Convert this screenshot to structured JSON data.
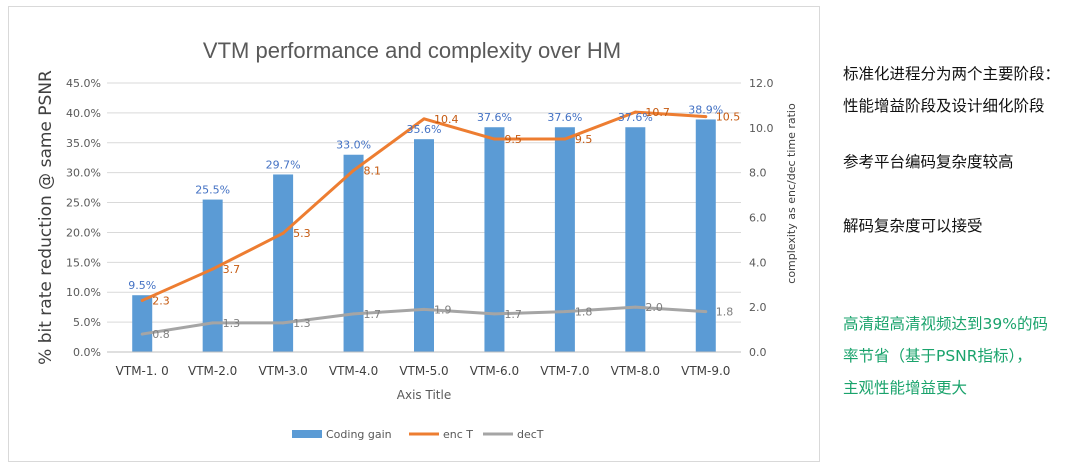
{
  "chart_data": {
    "type": "bar",
    "title": "VTM performance and complexity over HM",
    "xlabel": "Axis Title",
    "ylabel": "% bit rate reduction @ same PSNR",
    "y2label": "complexity as enc/dec time ratio",
    "categories": [
      "VTM-1. 0",
      "VTM-2.0",
      "VTM-3.0",
      "VTM-4.0",
      "VTM-5.0",
      "VTM-6.0",
      "VTM-7.0",
      "VTM-8.0",
      "VTM-9.0"
    ],
    "ylim": [
      0,
      45
    ],
    "yticks": [
      "0.0%",
      "5.0%",
      "10.0%",
      "15.0%",
      "20.0%",
      "25.0%",
      "30.0%",
      "35.0%",
      "40.0%",
      "45.0%"
    ],
    "y2lim": [
      0,
      12
    ],
    "y2ticks": [
      "0.0",
      "2.0",
      "4.0",
      "6.0",
      "8.0",
      "10.0",
      "12.0"
    ],
    "grid": true,
    "legend_position": "bottom",
    "series": [
      {
        "name": "Coding gain",
        "type": "bar",
        "axis": "left",
        "color": "#5b9bd5",
        "values": [
          9.5,
          25.5,
          29.7,
          33.0,
          35.6,
          37.6,
          37.6,
          37.6,
          38.9
        ],
        "labels": [
          "9.5%",
          "25.5%",
          "29.7%",
          "33.0%",
          "35.6%",
          "37.6%",
          "37.6%",
          "37.6%",
          "38.9%"
        ]
      },
      {
        "name": "enc T",
        "type": "line",
        "axis": "right",
        "color": "#ed7d31",
        "values": [
          2.3,
          3.7,
          5.3,
          8.1,
          10.4,
          9.5,
          9.5,
          10.7,
          10.5
        ],
        "labels": [
          "2.3",
          "3.7",
          "5.3",
          "8.1",
          "10.4",
          "9.5",
          "9.5",
          "10.7",
          "10.5"
        ]
      },
      {
        "name": "decT",
        "type": "line",
        "axis": "right",
        "color": "#a5a5a5",
        "values": [
          0.8,
          1.3,
          1.3,
          1.7,
          1.9,
          1.7,
          1.8,
          2.0,
          1.8
        ],
        "labels": [
          "0.8",
          "1.3",
          "1.3",
          "1.7",
          "1.9",
          "1.7",
          "1.8",
          "2.0",
          "1.8"
        ]
      }
    ]
  },
  "notes": {
    "line1": "标准化进程分为两个主要阶段：",
    "line2": "性能增益阶段及设计细化阶段",
    "line3": "参考平台编码复杂度较高",
    "line4": "解码复杂度可以接受",
    "highlight1": "高清超高清视频达到39%的码",
    "highlight2": "率节省（基于PSNR指标），",
    "highlight3": "主观性能增益更大",
    "highlight_color": "#1aa36c"
  }
}
